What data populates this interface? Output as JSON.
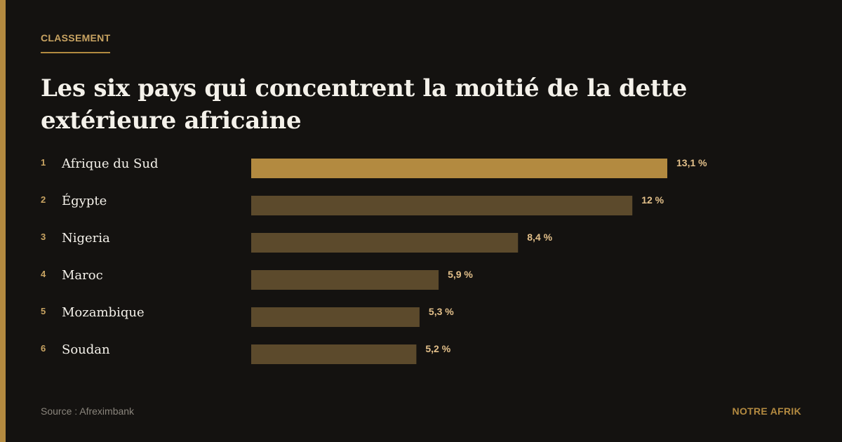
{
  "header": {
    "kicker": "CLASSEMENT",
    "title": "Les six pays qui concentrent la moitié de la dette extérieure africaine"
  },
  "footer": {
    "source": "Source : Afreximbank",
    "brand": "NOTRE AFRIK"
  },
  "colors": {
    "accent": "#b38a40",
    "top_bar": "#b38a40",
    "bar": "#5c4a2c",
    "value_text": "#e3c08a",
    "rank_text": "#c9a462",
    "label_text": "#f4f1ea"
  },
  "chart_data": {
    "type": "bar",
    "orientation": "horizontal",
    "title": "Les six pays qui concentrent la moitié de la dette extérieure africaine",
    "ranks": [
      "1",
      "2",
      "3",
      "4",
      "5",
      "6"
    ],
    "categories": [
      "Afrique du Sud",
      "Égypte",
      "Nigeria",
      "Maroc",
      "Mozambique",
      "Soudan"
    ],
    "values": [
      13.1,
      12,
      8.4,
      5.9,
      5.3,
      5.2
    ],
    "value_labels": [
      "13,1 %",
      "12 %",
      "8,4 %",
      "5,9 %",
      "5,3 %",
      "5,2 %"
    ],
    "unit": "%",
    "grid": false
  }
}
